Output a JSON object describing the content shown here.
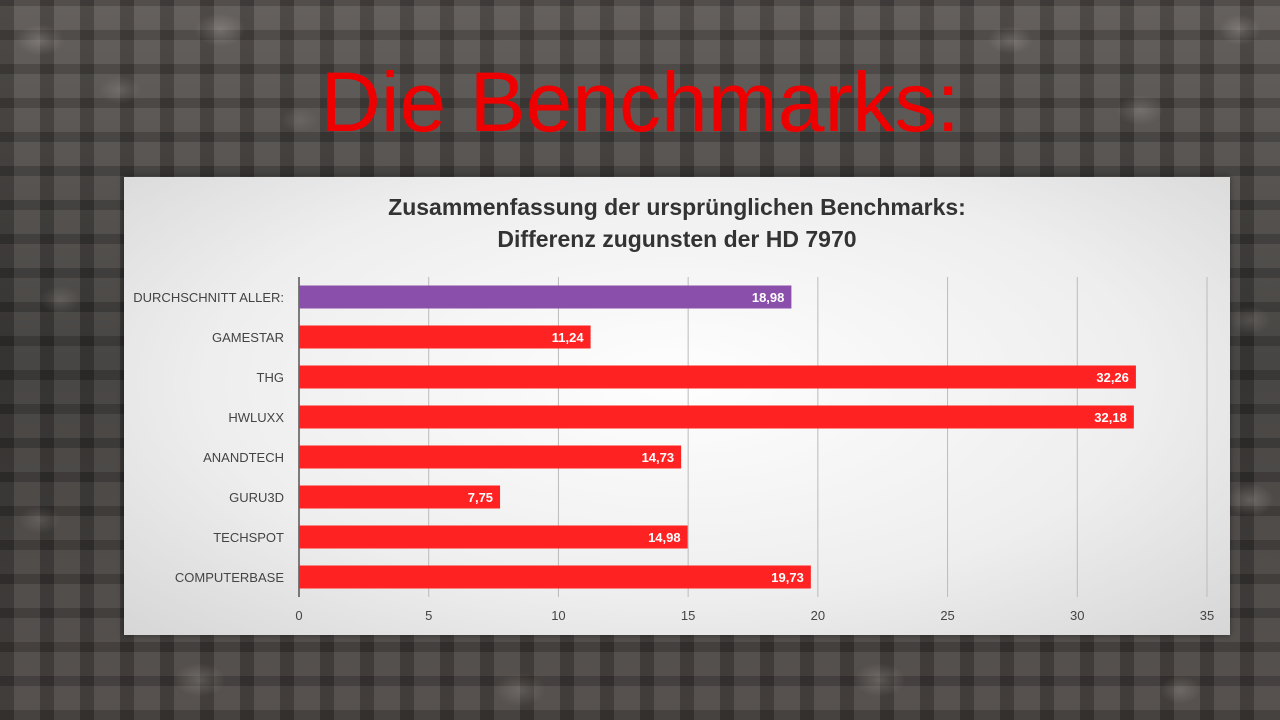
{
  "slide": {
    "title": "Die Benchmarks:"
  },
  "colors": {
    "title": "#ee0000",
    "bar_default": "#ff2222",
    "bar_highlight": "#8a4fab",
    "grid": "#bbbbbb",
    "axis": "#555555"
  },
  "chart_data": {
    "type": "bar",
    "orientation": "horizontal",
    "title": "Zusammenfassung der ursprünglichen Benchmarks:",
    "subtitle": "Differenz zugunsten der HD 7970",
    "xlabel": "",
    "ylabel": "",
    "xlim": [
      0,
      35
    ],
    "xticks": [
      0,
      5,
      10,
      15,
      20,
      25,
      30,
      35
    ],
    "grid": "vertical",
    "legend": "none",
    "categories": [
      "DURCHSCHNITT ALLER:",
      "GAMESTAR",
      "THG",
      "HWLUXX",
      "ANANDTECH",
      "GURU3D",
      "TECHSPOT",
      "COMPUTERBASE"
    ],
    "values": [
      18.98,
      11.24,
      32.26,
      32.18,
      14.73,
      7.75,
      14.98,
      19.73
    ],
    "value_labels": [
      "18,98",
      "11,24",
      "32,26",
      "32,18",
      "14,73",
      "7,75",
      "14,98",
      "19,73"
    ],
    "highlight_index": 0
  }
}
